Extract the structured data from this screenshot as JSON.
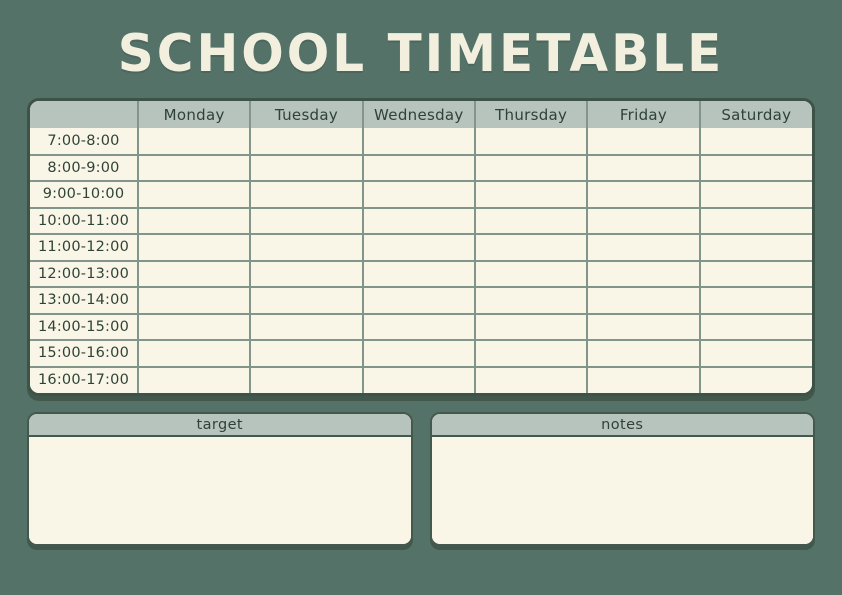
{
  "title": "SCHOOL TIMETABLE",
  "timetable": {
    "corner_label": "",
    "days": [
      "Monday",
      "Tuesday",
      "Wednesday",
      "Thursday",
      "Friday",
      "Saturday"
    ],
    "time_slots": [
      "7:00-8:00",
      "8:00-9:00",
      "9:00-10:00",
      "10:00-11:00",
      "11:00-12:00",
      "12:00-13:00",
      "13:00-14:00",
      "14:00-15:00",
      "15:00-16:00",
      "16:00-17:00"
    ],
    "cell_value": ""
  },
  "panels": {
    "target_label": "target",
    "notes_label": "notes"
  },
  "colors": {
    "background": "#547268",
    "title_text": "#f3efde",
    "header_bar": "#b7c3bd",
    "cell_background": "#faf6e7",
    "grid_line": "#81958b",
    "outer_border": "#3e5348",
    "text": "#2f4237",
    "shadow": "#42584c"
  }
}
